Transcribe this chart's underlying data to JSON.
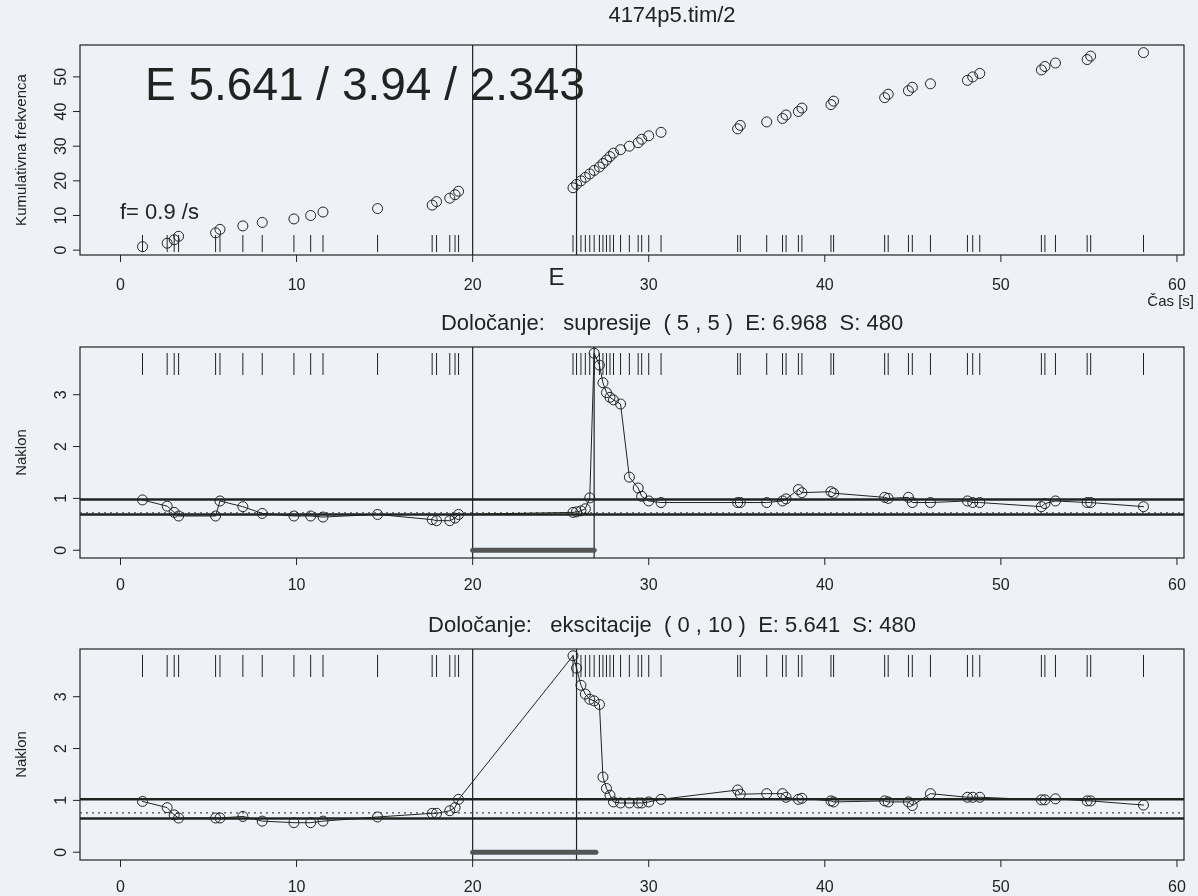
{
  "chart_data": [
    {
      "type": "scatter",
      "title": "4174p5.tim/2",
      "xlabel": "Čas [s]",
      "ylabel": "Kumulativna frekvenca",
      "xlim": [
        -2.3,
        60.4
      ],
      "ylim": [
        -1.4,
        59.2
      ],
      "xticks": [
        0,
        10,
        20,
        30,
        40,
        50,
        60
      ],
      "yticks": [
        0,
        10,
        20,
        30,
        40,
        50
      ],
      "marker": "circle",
      "grid": false,
      "annotations": [
        "E 5.641 / 3.94 / 2.343",
        "f= 0.9 /s"
      ],
      "ref_lines": [
        {
          "axis": "x",
          "value": 20,
          "color": "#222222"
        },
        {
          "axis": "x",
          "value": 25.9,
          "label": "E",
          "color": "#222222"
        }
      ],
      "x": [
        1.25,
        2.65,
        3.05,
        3.3,
        5.4,
        5.65,
        6.95,
        8.05,
        9.85,
        10.8,
        11.5,
        14.6,
        17.7,
        17.95,
        18.7,
        19.0,
        19.2,
        25.7,
        25.9,
        26.15,
        26.4,
        26.65,
        26.9,
        27.2,
        27.4,
        27.6,
        27.8,
        28.0,
        28.4,
        28.9,
        29.4,
        29.6,
        30.0,
        30.7,
        35.05,
        35.2,
        36.7,
        37.6,
        37.8,
        38.5,
        38.7,
        40.35,
        40.5,
        43.4,
        43.6,
        44.75,
        44.97,
        46.0,
        48.1,
        48.4,
        48.8,
        52.3,
        52.5,
        53.1,
        54.9,
        55.1,
        58.1
      ],
      "series": [
        {
          "color": "#222222",
          "values": [
            1,
            2,
            3,
            4,
            5,
            6,
            7,
            8,
            9,
            10,
            11,
            12,
            13,
            14,
            15,
            16,
            17,
            18,
            19,
            20,
            21,
            22,
            23,
            24,
            25,
            26,
            27,
            28,
            29,
            30,
            31,
            32,
            33,
            34,
            35,
            36,
            37,
            38,
            39,
            40,
            41,
            42,
            43,
            44,
            45,
            46,
            47,
            48,
            49,
            50,
            51,
            52,
            53,
            54,
            55,
            56,
            57
          ]
        }
      ]
    },
    {
      "type": "line",
      "title": "Določanje:   supresije  ( 5 , 5 )  E: 6.968  S: 480",
      "ylabel": "Naklon",
      "xlim": [
        -2.3,
        60.4
      ],
      "ylim": [
        -0.15,
        3.92
      ],
      "xticks": [
        0,
        10,
        20,
        30,
        40,
        50,
        60
      ],
      "yticks": [
        0,
        1,
        2,
        3
      ],
      "marker": "circle",
      "line_style": "solid",
      "grid": false,
      "ref_lines": [
        {
          "axis": "x",
          "value": 20,
          "color": "#222222"
        },
        {
          "axis": "x",
          "value": 26.9,
          "color": "#222222"
        },
        {
          "axis": "y",
          "value": 0.98,
          "color": "#222222"
        },
        {
          "axis": "y",
          "value": 0.69,
          "color": "#222222"
        },
        {
          "axis": "y",
          "value": 0.72,
          "color": "#444444",
          "line_style": "dotted"
        }
      ],
      "x": [
        1.25,
        2.65,
        3.05,
        3.3,
        5.4,
        5.65,
        6.95,
        8.05,
        9.85,
        10.8,
        11.5,
        14.6,
        17.7,
        17.95,
        18.7,
        19.0,
        19.2,
        25.7,
        25.9,
        26.15,
        26.4,
        26.65,
        26.9,
        27.2,
        27.4,
        27.6,
        27.8,
        28.0,
        28.4,
        28.9,
        29.4,
        29.6,
        30.0,
        30.7,
        35.05,
        35.2,
        36.7,
        37.6,
        37.8,
        38.5,
        38.7,
        40.35,
        40.5,
        43.4,
        43.6,
        44.75,
        44.97,
        46.0,
        48.1,
        48.4,
        48.8,
        52.3,
        52.5,
        53.1,
        54.9,
        55.1,
        58.1
      ],
      "series": [
        {
          "color": "#222222",
          "values": [
            0.97,
            0.85,
            0.73,
            0.66,
            0.66,
            0.95,
            0.84,
            0.71,
            0.66,
            0.66,
            0.64,
            0.69,
            0.59,
            0.57,
            0.57,
            0.62,
            0.69,
            0.73,
            0.74,
            0.76,
            0.8,
            1.01,
            3.8,
            3.57,
            3.23,
            3.04,
            2.95,
            2.9,
            2.82,
            1.41,
            1.2,
            1.04,
            0.95,
            0.92,
            0.92,
            0.92,
            0.92,
            0.95,
            0.99,
            1.17,
            1.11,
            1.13,
            1.1,
            1.02,
            1.0,
            1.02,
            0.92,
            0.92,
            0.95,
            0.92,
            0.92,
            0.84,
            0.9,
            0.95,
            0.92,
            0.92,
            0.84
          ]
        },
        {
          "type": "line",
          "marker": "none",
          "color": "#555555",
          "x": [
            20,
            26.9
          ],
          "values": [
            0,
            0
          ]
        }
      ]
    },
    {
      "type": "line",
      "title": "Določanje:   ekscitacije  ( 0 , 10 )  E: 5.641  S: 480",
      "ylabel": "Naklon",
      "xlim": [
        -2.3,
        60.4
      ],
      "ylim": [
        -0.15,
        3.92
      ],
      "xticks": [
        0,
        10,
        20,
        30,
        40,
        50,
        60
      ],
      "yticks": [
        0,
        1,
        2,
        3
      ],
      "marker": "circle",
      "line_style": "solid",
      "grid": false,
      "ref_lines": [
        {
          "axis": "x",
          "value": 20,
          "color": "#222222"
        },
        {
          "axis": "x",
          "value": 25.9,
          "color": "#222222"
        },
        {
          "axis": "y",
          "value": 1.02,
          "color": "#222222"
        },
        {
          "axis": "y",
          "value": 0.65,
          "color": "#222222"
        },
        {
          "axis": "y",
          "value": 0.76,
          "color": "#444444",
          "line_style": "dotted"
        }
      ],
      "x": [
        1.25,
        2.65,
        3.05,
        3.3,
        5.4,
        5.65,
        6.95,
        8.05,
        9.85,
        10.8,
        11.5,
        14.6,
        17.7,
        17.95,
        18.7,
        19.0,
        19.2,
        25.7,
        25.9,
        26.15,
        26.4,
        26.65,
        26.9,
        27.2,
        27.4,
        27.6,
        27.8,
        28.0,
        28.4,
        28.9,
        29.4,
        29.6,
        30.0,
        30.7,
        35.05,
        35.2,
        36.7,
        37.6,
        37.8,
        38.5,
        38.7,
        40.35,
        40.5,
        43.4,
        43.6,
        44.75,
        44.97,
        46.0,
        48.1,
        48.4,
        48.8,
        52.3,
        52.5,
        53.1,
        54.9,
        55.1,
        58.1
      ],
      "series": [
        {
          "color": "#222222",
          "values": [
            0.98,
            0.86,
            0.72,
            0.66,
            0.66,
            0.66,
            0.69,
            0.6,
            0.57,
            0.57,
            0.6,
            0.68,
            0.75,
            0.75,
            0.8,
            0.86,
            1.02,
            3.79,
            3.55,
            3.22,
            3.05,
            2.95,
            2.92,
            2.85,
            1.45,
            1.23,
            1.1,
            0.97,
            0.95,
            0.95,
            0.95,
            0.95,
            0.97,
            1.02,
            1.2,
            1.12,
            1.13,
            1.13,
            1.06,
            1.02,
            1.04,
            0.99,
            0.97,
            0.99,
            0.97,
            0.97,
            0.9,
            1.13,
            1.06,
            1.06,
            1.06,
            1.01,
            1.01,
            1.03,
            0.99,
            0.99,
            0.91
          ]
        },
        {
          "type": "line",
          "marker": "none",
          "color": "#555555",
          "x": [
            20,
            27
          ],
          "values": [
            0,
            0
          ]
        }
      ]
    }
  ]
}
